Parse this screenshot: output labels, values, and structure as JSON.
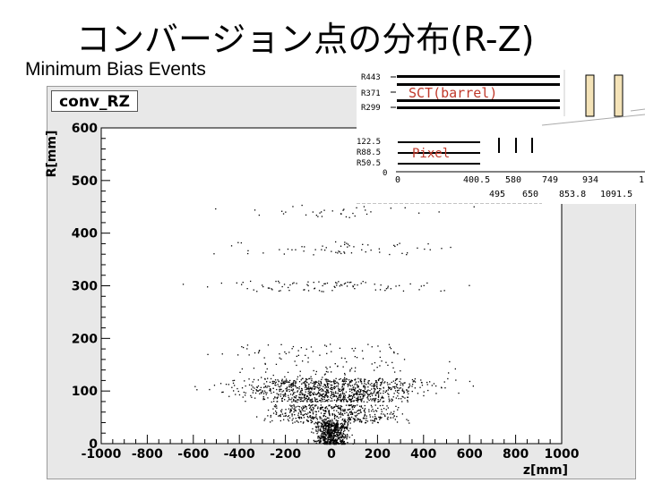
{
  "slide": {
    "title": "コンバージョン点の分布(R-Z)",
    "subtitle": "Minimum Bias Events"
  },
  "chart_data": {
    "type": "scatter",
    "histogram_name": "conv_RZ",
    "xlabel": "z[mm]",
    "ylabel": "R[mm]",
    "xlim": [
      -1000,
      1000
    ],
    "ylim": [
      0,
      600
    ],
    "x_ticks": [
      "-1000",
      "-800",
      "-600",
      "-400",
      "-200",
      "0",
      "200",
      "400",
      "600",
      "800",
      "1000"
    ],
    "y_ticks": [
      "0",
      "100",
      "200",
      "300",
      "400",
      "500",
      "600"
    ],
    "grid": false,
    "point_clusters": [
      {
        "z_range": [
          -100,
          100
        ],
        "r_range": [
          0,
          40
        ],
        "count": 600
      },
      {
        "z_range": [
          -400,
          400
        ],
        "r_range": [
          40,
          75
        ],
        "count": 500
      },
      {
        "z_range": [
          -500,
          500
        ],
        "r_range": [
          80,
          95
        ],
        "count": 350
      },
      {
        "z_range": [
          -650,
          650
        ],
        "r_range": [
          95,
          125
        ],
        "count": 650
      },
      {
        "z_range": [
          -650,
          650
        ],
        "r_range": [
          125,
          190
        ],
        "count": 120
      },
      {
        "z_range": [
          -750,
          750
        ],
        "r_range": [
          290,
          310
        ],
        "count": 90
      },
      {
        "z_range": [
          -750,
          750
        ],
        "r_range": [
          360,
          385
        ],
        "count": 60
      },
      {
        "z_range": [
          -750,
          750
        ],
        "r_range": [
          430,
          455
        ],
        "count": 35
      }
    ]
  },
  "inset": {
    "r_labels": [
      "R443",
      "R371",
      "R299",
      "122.5",
      "R88.5",
      "R50.5",
      "0"
    ],
    "z_labels_top": [
      "0",
      "400.5",
      "580",
      "749",
      "934",
      "1"
    ],
    "z_labels_bottom": [
      "495",
      "650",
      "853.8",
      "1091.5"
    ],
    "sct_label": "SCT(barrel)",
    "pixel_label": "Pixel"
  },
  "colors": {
    "title": "#000000",
    "frame_background": "#e8e8e8",
    "plot_background": "#ffffff",
    "points": "#000000",
    "inset_label": "#c0392b"
  }
}
